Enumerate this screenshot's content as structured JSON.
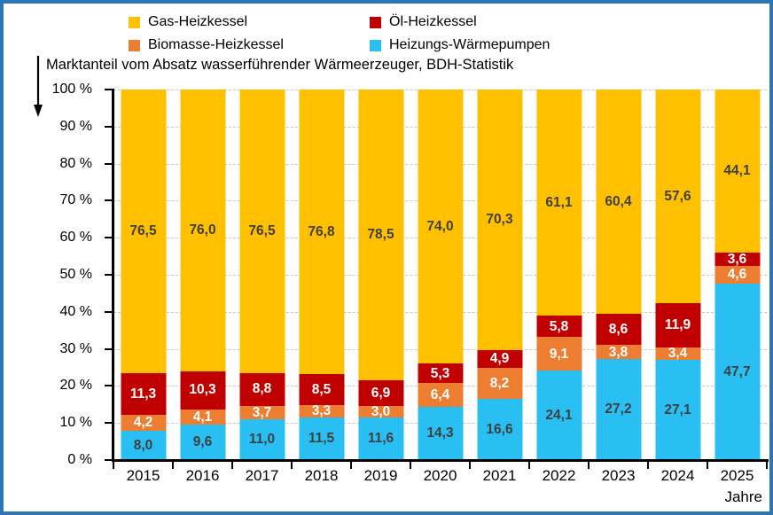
{
  "frame": {
    "border_color": "#2E75B6",
    "background": "#FFFFFF"
  },
  "title": "Marktanteil vom Absatz wasserführender Wärmeerzeuger, BDH-Statistik",
  "legend": {
    "items": [
      {
        "key": "gas",
        "label": "Gas-Heizkessel",
        "color": "#FFC000"
      },
      {
        "key": "oel",
        "label": "Öl-Heizkessel",
        "color": "#C00000"
      },
      {
        "key": "biomasse",
        "label": "Biomasse-Heizkessel",
        "color": "#ED7D31"
      },
      {
        "key": "wp",
        "label": "Heizungs-Wärmepumpen",
        "color": "#29BFF2"
      }
    ]
  },
  "chart_data": {
    "type": "bar",
    "stacked": true,
    "title": "Marktanteil vom Absatz wasserführender Wärmeerzeuger, BDH-Statistik",
    "categories": [
      "2015",
      "2016",
      "2017",
      "2018",
      "2019",
      "2020",
      "2021",
      "2022",
      "2023",
      "2024",
      "2025"
    ],
    "series": [
      {
        "key": "wp",
        "name": "Heizungs-Wärmepumpen",
        "color": "#29BFF2",
        "label_color": "#3F3F3F",
        "values": [
          8.0,
          9.6,
          11.0,
          11.5,
          11.6,
          14.3,
          16.6,
          24.1,
          27.2,
          27.1,
          47.7
        ]
      },
      {
        "key": "biomasse",
        "name": "Biomasse-Heizkessel",
        "color": "#ED7D31",
        "label_color": "#FFFFFF",
        "values": [
          4.2,
          4.1,
          3.7,
          3.3,
          3.0,
          6.4,
          8.2,
          9.1,
          3.8,
          3.4,
          4.6
        ]
      },
      {
        "key": "oel",
        "name": "Öl-Heizkessel",
        "color": "#C00000",
        "label_color": "#FFFFFF",
        "values": [
          11.3,
          10.3,
          8.8,
          8.5,
          6.9,
          5.3,
          4.9,
          5.8,
          8.6,
          11.9,
          3.6
        ]
      },
      {
        "key": "gas",
        "name": "Gas-Heizkessel",
        "color": "#FFC000",
        "label_color": "#3F3F3F",
        "values": [
          76.5,
          76.0,
          76.5,
          76.8,
          78.5,
          74.0,
          70.3,
          61.1,
          60.4,
          57.6,
          44.1
        ]
      }
    ],
    "y_ticks": [
      "100 %",
      "90 %",
      "80 %",
      "70 %",
      "60 %",
      "50 %",
      "40 %",
      "30 %",
      "20 %",
      "10 %",
      "0 %"
    ],
    "ylim": [
      0,
      100
    ],
    "xlabel": "Jahre",
    "decimal_separator": ",",
    "grid": "dashed-horizontal",
    "legend_position": "top"
  }
}
